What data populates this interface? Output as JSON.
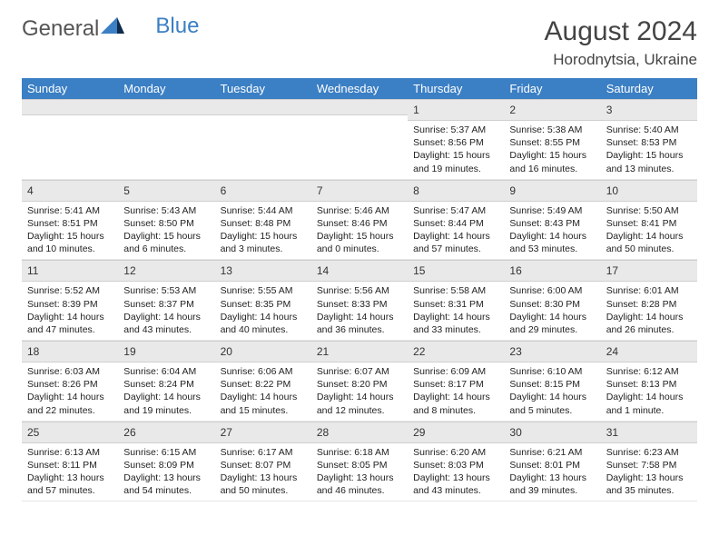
{
  "brand": {
    "part1": "General",
    "part2": "Blue"
  },
  "title": "August 2024",
  "location": "Horodnytsia, Ukraine",
  "dayHeaders": [
    "Sunday",
    "Monday",
    "Tuesday",
    "Wednesday",
    "Thursday",
    "Friday",
    "Saturday"
  ],
  "colors": {
    "header_bg": "#3b7fc4",
    "header_fg": "#ffffff",
    "daynum_bg": "#e9e9e9",
    "border": "#cfcfcf",
    "text": "#222222",
    "brand_gray": "#555555",
    "brand_blue": "#3b7fc4"
  },
  "weeks": [
    [
      {
        "n": "",
        "sunrise": "",
        "sunset": "",
        "daylight": ""
      },
      {
        "n": "",
        "sunrise": "",
        "sunset": "",
        "daylight": ""
      },
      {
        "n": "",
        "sunrise": "",
        "sunset": "",
        "daylight": ""
      },
      {
        "n": "",
        "sunrise": "",
        "sunset": "",
        "daylight": ""
      },
      {
        "n": "1",
        "sunrise": "Sunrise: 5:37 AM",
        "sunset": "Sunset: 8:56 PM",
        "daylight": "Daylight: 15 hours and 19 minutes."
      },
      {
        "n": "2",
        "sunrise": "Sunrise: 5:38 AM",
        "sunset": "Sunset: 8:55 PM",
        "daylight": "Daylight: 15 hours and 16 minutes."
      },
      {
        "n": "3",
        "sunrise": "Sunrise: 5:40 AM",
        "sunset": "Sunset: 8:53 PM",
        "daylight": "Daylight: 15 hours and 13 minutes."
      }
    ],
    [
      {
        "n": "4",
        "sunrise": "Sunrise: 5:41 AM",
        "sunset": "Sunset: 8:51 PM",
        "daylight": "Daylight: 15 hours and 10 minutes."
      },
      {
        "n": "5",
        "sunrise": "Sunrise: 5:43 AM",
        "sunset": "Sunset: 8:50 PM",
        "daylight": "Daylight: 15 hours and 6 minutes."
      },
      {
        "n": "6",
        "sunrise": "Sunrise: 5:44 AM",
        "sunset": "Sunset: 8:48 PM",
        "daylight": "Daylight: 15 hours and 3 minutes."
      },
      {
        "n": "7",
        "sunrise": "Sunrise: 5:46 AM",
        "sunset": "Sunset: 8:46 PM",
        "daylight": "Daylight: 15 hours and 0 minutes."
      },
      {
        "n": "8",
        "sunrise": "Sunrise: 5:47 AM",
        "sunset": "Sunset: 8:44 PM",
        "daylight": "Daylight: 14 hours and 57 minutes."
      },
      {
        "n": "9",
        "sunrise": "Sunrise: 5:49 AM",
        "sunset": "Sunset: 8:43 PM",
        "daylight": "Daylight: 14 hours and 53 minutes."
      },
      {
        "n": "10",
        "sunrise": "Sunrise: 5:50 AM",
        "sunset": "Sunset: 8:41 PM",
        "daylight": "Daylight: 14 hours and 50 minutes."
      }
    ],
    [
      {
        "n": "11",
        "sunrise": "Sunrise: 5:52 AM",
        "sunset": "Sunset: 8:39 PM",
        "daylight": "Daylight: 14 hours and 47 minutes."
      },
      {
        "n": "12",
        "sunrise": "Sunrise: 5:53 AM",
        "sunset": "Sunset: 8:37 PM",
        "daylight": "Daylight: 14 hours and 43 minutes."
      },
      {
        "n": "13",
        "sunrise": "Sunrise: 5:55 AM",
        "sunset": "Sunset: 8:35 PM",
        "daylight": "Daylight: 14 hours and 40 minutes."
      },
      {
        "n": "14",
        "sunrise": "Sunrise: 5:56 AM",
        "sunset": "Sunset: 8:33 PM",
        "daylight": "Daylight: 14 hours and 36 minutes."
      },
      {
        "n": "15",
        "sunrise": "Sunrise: 5:58 AM",
        "sunset": "Sunset: 8:31 PM",
        "daylight": "Daylight: 14 hours and 33 minutes."
      },
      {
        "n": "16",
        "sunrise": "Sunrise: 6:00 AM",
        "sunset": "Sunset: 8:30 PM",
        "daylight": "Daylight: 14 hours and 29 minutes."
      },
      {
        "n": "17",
        "sunrise": "Sunrise: 6:01 AM",
        "sunset": "Sunset: 8:28 PM",
        "daylight": "Daylight: 14 hours and 26 minutes."
      }
    ],
    [
      {
        "n": "18",
        "sunrise": "Sunrise: 6:03 AM",
        "sunset": "Sunset: 8:26 PM",
        "daylight": "Daylight: 14 hours and 22 minutes."
      },
      {
        "n": "19",
        "sunrise": "Sunrise: 6:04 AM",
        "sunset": "Sunset: 8:24 PM",
        "daylight": "Daylight: 14 hours and 19 minutes."
      },
      {
        "n": "20",
        "sunrise": "Sunrise: 6:06 AM",
        "sunset": "Sunset: 8:22 PM",
        "daylight": "Daylight: 14 hours and 15 minutes."
      },
      {
        "n": "21",
        "sunrise": "Sunrise: 6:07 AM",
        "sunset": "Sunset: 8:20 PM",
        "daylight": "Daylight: 14 hours and 12 minutes."
      },
      {
        "n": "22",
        "sunrise": "Sunrise: 6:09 AM",
        "sunset": "Sunset: 8:17 PM",
        "daylight": "Daylight: 14 hours and 8 minutes."
      },
      {
        "n": "23",
        "sunrise": "Sunrise: 6:10 AM",
        "sunset": "Sunset: 8:15 PM",
        "daylight": "Daylight: 14 hours and 5 minutes."
      },
      {
        "n": "24",
        "sunrise": "Sunrise: 6:12 AM",
        "sunset": "Sunset: 8:13 PM",
        "daylight": "Daylight: 14 hours and 1 minute."
      }
    ],
    [
      {
        "n": "25",
        "sunrise": "Sunrise: 6:13 AM",
        "sunset": "Sunset: 8:11 PM",
        "daylight": "Daylight: 13 hours and 57 minutes."
      },
      {
        "n": "26",
        "sunrise": "Sunrise: 6:15 AM",
        "sunset": "Sunset: 8:09 PM",
        "daylight": "Daylight: 13 hours and 54 minutes."
      },
      {
        "n": "27",
        "sunrise": "Sunrise: 6:17 AM",
        "sunset": "Sunset: 8:07 PM",
        "daylight": "Daylight: 13 hours and 50 minutes."
      },
      {
        "n": "28",
        "sunrise": "Sunrise: 6:18 AM",
        "sunset": "Sunset: 8:05 PM",
        "daylight": "Daylight: 13 hours and 46 minutes."
      },
      {
        "n": "29",
        "sunrise": "Sunrise: 6:20 AM",
        "sunset": "Sunset: 8:03 PM",
        "daylight": "Daylight: 13 hours and 43 minutes."
      },
      {
        "n": "30",
        "sunrise": "Sunrise: 6:21 AM",
        "sunset": "Sunset: 8:01 PM",
        "daylight": "Daylight: 13 hours and 39 minutes."
      },
      {
        "n": "31",
        "sunrise": "Sunrise: 6:23 AM",
        "sunset": "Sunset: 7:58 PM",
        "daylight": "Daylight: 13 hours and 35 minutes."
      }
    ]
  ]
}
